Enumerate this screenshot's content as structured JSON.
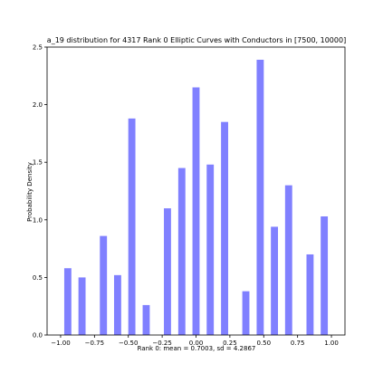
{
  "chart_data": {
    "type": "bar",
    "title": "a_19 distribution for 4317 Rank 0 Elliptic Curves with Conductors in [7500, 10000]",
    "xlabel": "Rank 0: mean = 0.7003, sd = 4.2867",
    "ylabel": "Probability Density",
    "xlim": [
      -1.1,
      1.1
    ],
    "ylim": [
      0,
      2.5
    ],
    "bar_width": 0.0526,
    "bar_color": "#8080ff",
    "grid": false,
    "x": [
      -0.947,
      -0.842,
      -0.684,
      -0.579,
      -0.474,
      -0.368,
      -0.211,
      -0.105,
      0.0,
      0.105,
      0.211,
      0.368,
      0.474,
      0.579,
      0.684,
      0.842,
      0.947
    ],
    "values": [
      0.58,
      0.5,
      0.86,
      0.52,
      1.88,
      0.26,
      1.1,
      1.45,
      2.15,
      1.48,
      1.85,
      0.38,
      2.39,
      0.94,
      1.3,
      0.7,
      1.03
    ],
    "x_ticks": [
      -1.0,
      -0.75,
      -0.5,
      -0.25,
      0.0,
      0.25,
      0.5,
      0.75,
      1.0
    ],
    "x_tick_labels": [
      "−1.00",
      "−0.75",
      "−0.50",
      "−0.25",
      "0.00",
      "0.25",
      "0.50",
      "0.75",
      "1.00"
    ],
    "y_ticks": [
      0.0,
      0.5,
      1.0,
      1.5,
      2.0,
      2.5
    ],
    "y_tick_labels": [
      "0.0",
      "0.5",
      "1.0",
      "1.5",
      "2.0",
      "2.5"
    ]
  }
}
